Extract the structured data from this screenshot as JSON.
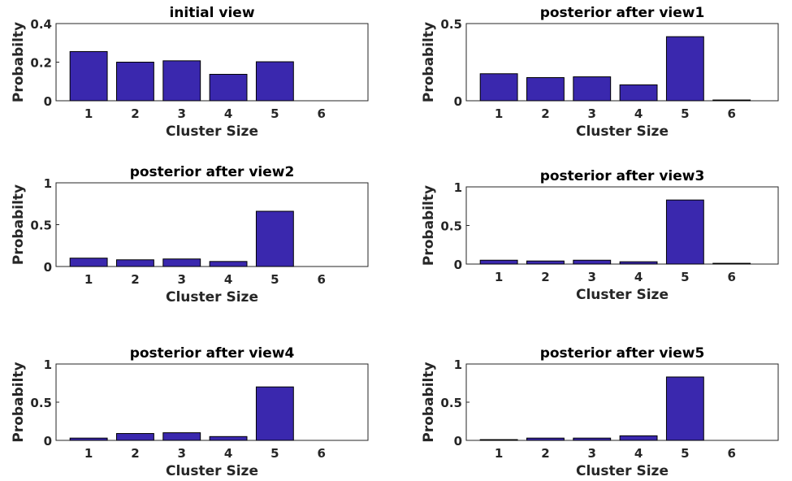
{
  "colors": {
    "bar": "#3A28AE",
    "axis": "#262626",
    "background": "#ffffff"
  },
  "chart_data": [
    {
      "type": "bar",
      "title": "initial view",
      "xlabel": "Cluster Size",
      "ylabel": "Probabilty",
      "categories": [
        "1",
        "2",
        "3",
        "4",
        "5",
        "6"
      ],
      "values": [
        0.255,
        0.2,
        0.207,
        0.137,
        0.202,
        0.0
      ],
      "ylim": [
        0,
        0.4
      ],
      "yticks": [
        "0",
        "0.2",
        "0.4"
      ],
      "xlim": [
        0.3,
        7.0
      ]
    },
    {
      "type": "bar",
      "title": "posterior after view1",
      "xlabel": "Cluster Size",
      "ylabel": "Probabilty",
      "categories": [
        "1",
        "2",
        "3",
        "4",
        "5",
        "6"
      ],
      "values": [
        0.175,
        0.15,
        0.155,
        0.103,
        0.415,
        0.005
      ],
      "ylim": [
        0,
        0.5
      ],
      "yticks": [
        "0",
        "0.5"
      ],
      "xlim": [
        0.3,
        7.0
      ]
    },
    {
      "type": "bar",
      "title": "posterior after view2",
      "xlabel": "Cluster Size",
      "ylabel": "Probabilty",
      "categories": [
        "1",
        "2",
        "3",
        "4",
        "5",
        "6"
      ],
      "values": [
        0.1,
        0.08,
        0.09,
        0.06,
        0.66,
        0.0
      ],
      "ylim": [
        0,
        1
      ],
      "yticks": [
        "0",
        "0.5",
        "1"
      ],
      "xlim": [
        0.3,
        7.0
      ]
    },
    {
      "type": "bar",
      "title": "posterior after view3",
      "xlabel": "Cluster Size",
      "ylabel": "Probabilty",
      "categories": [
        "1",
        "2",
        "3",
        "4",
        "5",
        "6"
      ],
      "values": [
        0.05,
        0.04,
        0.05,
        0.03,
        0.83,
        0.01
      ],
      "ylim": [
        0,
        1
      ],
      "yticks": [
        "0",
        "0.5",
        "1"
      ],
      "xlim": [
        0.3,
        7.0
      ]
    },
    {
      "type": "bar",
      "title": "posterior after view4",
      "xlabel": "Cluster Size",
      "ylabel": "Probabilty",
      "categories": [
        "1",
        "2",
        "3",
        "4",
        "5",
        "6"
      ],
      "values": [
        0.03,
        0.09,
        0.1,
        0.05,
        0.7,
        0.0
      ],
      "ylim": [
        0,
        1
      ],
      "yticks": [
        "0",
        "0.5",
        "1"
      ],
      "xlim": [
        0.3,
        7.0
      ]
    },
    {
      "type": "bar",
      "title": "posterior after view5",
      "xlabel": "Cluster Size",
      "ylabel": "Probabilty",
      "categories": [
        "1",
        "2",
        "3",
        "4",
        "5",
        "6"
      ],
      "values": [
        0.01,
        0.03,
        0.03,
        0.06,
        0.83,
        0.0
      ],
      "ylim": [
        0,
        1
      ],
      "yticks": [
        "0",
        "0.5",
        "1"
      ],
      "xlim": [
        0.3,
        7.0
      ]
    }
  ]
}
